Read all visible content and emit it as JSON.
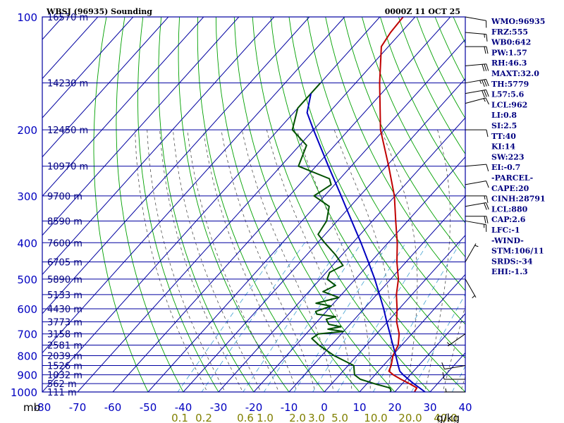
{
  "colors": {
    "frame": "#0000a0",
    "grid": "#0000a0",
    "dry_adiabat": "#00a000",
    "moist_adiabat": "#505050",
    "mixing_ratio": "#40a0d0",
    "temperature": "#c00000",
    "dewpoint": "#005000",
    "parcel": "#0000c0",
    "labels": "#000080",
    "left_labels": "#0000c0",
    "mixing_labels": "#808000"
  },
  "header": {
    "title": "WBSJ (96935) Sounding",
    "time": "0000Z 11 OCT 25"
  },
  "axes": {
    "pressure_unit": "mb",
    "mixing_unit": "g/kg"
  },
  "stats": [
    "WMO:96935",
    "FRZ:555",
    "WB0:642",
    "PW:1.57",
    "RH:46.3",
    "MAXT:32.0",
    "TH:5779",
    "L57:5.6",
    "LCL:962",
    "LI:0.8",
    "SI:2.5",
    "TT:40",
    "KI:14",
    "SW:223",
    "EI:-0.7",
    "-PARCEL-",
    "CAPE:20",
    "CINH:28791",
    "LCL:880",
    "CAP:2.6",
    "LFC:-1",
    "-WIND-",
    "STM:106/11",
    "SRDS:-34",
    "EHI:-1.3"
  ],
  "chart_data": {
    "type": "skew-t",
    "title": "WBSJ (96935) Sounding",
    "pressure_levels_mb": [
      100,
      200,
      300,
      400,
      500,
      600,
      700,
      800,
      900,
      1000
    ],
    "pressure_tick_labels": [
      "100",
      "200",
      "300",
      "400",
      "500",
      "600",
      "700",
      "800",
      "900",
      "1000"
    ],
    "temperature_ticks_c": [
      -80,
      -70,
      -60,
      -50,
      -40,
      -30,
      -20,
      -10,
      0,
      10,
      20,
      30,
      40
    ],
    "temperature_tick_labels": [
      "-80",
      "-70",
      "-60",
      "-50",
      "-40",
      "-30",
      "-20",
      "-10",
      "0",
      "10",
      "20",
      "30",
      "40"
    ],
    "xlim_c": [
      -80,
      40
    ],
    "heights": [
      {
        "p": 100,
        "label": "16570 m"
      },
      {
        "p": 150,
        "label": "14230 m"
      },
      {
        "p": 200,
        "label": "12450 m"
      },
      {
        "p": 250,
        "label": "10970 m"
      },
      {
        "p": 300,
        "label": "9700 m"
      },
      {
        "p": 350,
        "label": "8590 m"
      },
      {
        "p": 400,
        "label": "7600 m"
      },
      {
        "p": 450,
        "label": "6705 m"
      },
      {
        "p": 500,
        "label": "5890 m"
      },
      {
        "p": 550,
        "label": "5133 m"
      },
      {
        "p": 600,
        "label": "4430 m"
      },
      {
        "p": 650,
        "label": "3773 m"
      },
      {
        "p": 700,
        "label": "3158 m"
      },
      {
        "p": 750,
        "label": "2581 m"
      },
      {
        "p": 800,
        "label": "2039 m"
      },
      {
        "p": 850,
        "label": "1526 m"
      },
      {
        "p": 900,
        "label": "1032 m"
      },
      {
        "p": 950,
        "label": "562 m"
      },
      {
        "p": 1000,
        "label": "111 m"
      }
    ],
    "mixing_ratio_labels": [
      {
        "w": 0.1,
        "label": "0.1"
      },
      {
        "w": 0.2,
        "label": "0.2"
      },
      {
        "w": 0.6,
        "label": "0.6"
      },
      {
        "w": 1.0,
        "label": "1.0"
      },
      {
        "w": 2.0,
        "label": "2.0"
      },
      {
        "w": 3.0,
        "label": "3.0"
      },
      {
        "w": 5.0,
        "label": "5.0"
      },
      {
        "w": 10.0,
        "label": "10.0"
      },
      {
        "w": 20.0,
        "label": "20.0"
      },
      {
        "w": 40.0,
        "label": "40.0"
      }
    ],
    "series": [
      {
        "name": "temperature",
        "points": [
          [
            1000,
            25.6
          ],
          [
            990,
            25.4
          ],
          [
            975,
            25.2
          ],
          [
            950,
            22
          ],
          [
            925,
            18.5
          ],
          [
            900,
            15.2
          ],
          [
            880,
            13
          ],
          [
            850,
            12.2
          ],
          [
            800,
            10.2
          ],
          [
            750,
            9
          ],
          [
            700,
            6.4
          ],
          [
            650,
            2.6
          ],
          [
            600,
            -0.6
          ],
          [
            550,
            -4.4
          ],
          [
            500,
            -7.8
          ],
          [
            450,
            -12.6
          ],
          [
            400,
            -17.4
          ],
          [
            350,
            -23.4
          ],
          [
            300,
            -30.2
          ],
          [
            250,
            -39.4
          ],
          [
            200,
            -51
          ],
          [
            150,
            -63.2
          ],
          [
            120,
            -72
          ],
          [
            110,
            -73
          ],
          [
            100,
            -73.4
          ]
        ]
      },
      {
        "name": "dewpoint",
        "points": [
          [
            1000,
            18.7
          ],
          [
            990,
            18.5
          ],
          [
            975,
            17.5
          ],
          [
            950,
            12
          ],
          [
            925,
            7
          ],
          [
            900,
            4.2
          ],
          [
            850,
            1.6
          ],
          [
            800,
            -6.5
          ],
          [
            750,
            -13.5
          ],
          [
            720,
            -17.2
          ],
          [
            700,
            -16.5
          ],
          [
            690,
            -10
          ],
          [
            680,
            -15
          ],
          [
            670,
            -12
          ],
          [
            660,
            -16
          ],
          [
            640,
            -18
          ],
          [
            630,
            -16
          ],
          [
            620,
            -22
          ],
          [
            610,
            -23
          ],
          [
            590,
            -20
          ],
          [
            580,
            -25
          ],
          [
            560,
            -20
          ],
          [
            540,
            -26
          ],
          [
            520,
            -24
          ],
          [
            500,
            -28
          ],
          [
            480,
            -29
          ],
          [
            460,
            -27
          ],
          [
            430,
            -32
          ],
          [
            400,
            -38
          ],
          [
            380,
            -42
          ],
          [
            350,
            -43
          ],
          [
            320,
            -46
          ],
          [
            300,
            -53
          ],
          [
            280,
            -51
          ],
          [
            270,
            -53
          ],
          [
            250,
            -65
          ],
          [
            220,
            -68
          ],
          [
            200,
            -76
          ],
          [
            175,
            -80
          ],
          [
            150,
            -80
          ]
        ]
      },
      {
        "name": "parcel",
        "points": [
          [
            1000,
            28.6
          ],
          [
            950,
            23.2
          ],
          [
            900,
            18
          ],
          [
            880,
            16.1
          ],
          [
            850,
            14.2
          ],
          [
            800,
            11
          ],
          [
            750,
            7.5
          ],
          [
            700,
            3.8
          ],
          [
            650,
            -0.2
          ],
          [
            600,
            -4.4
          ],
          [
            550,
            -9.2
          ],
          [
            500,
            -14.5
          ],
          [
            450,
            -20.7
          ],
          [
            400,
            -27.7
          ],
          [
            350,
            -35.9
          ],
          [
            300,
            -45.3
          ],
          [
            250,
            -56.5
          ],
          [
            200,
            -70
          ],
          [
            180,
            -76.2
          ],
          [
            160,
            -80
          ]
        ]
      }
    ],
    "wind_barbs": [
      {
        "p": 100,
        "dir": 100,
        "spd": 10
      },
      {
        "p": 110,
        "dir": 95,
        "spd": 15
      },
      {
        "p": 120,
        "dir": 90,
        "spd": 20
      },
      {
        "p": 135,
        "dir": 85,
        "spd": 30
      },
      {
        "p": 150,
        "dir": 80,
        "spd": 35
      },
      {
        "p": 160,
        "dir": 80,
        "spd": 30
      },
      {
        "p": 170,
        "dir": 75,
        "spd": 15
      },
      {
        "p": 200,
        "dir": 90,
        "spd": 10
      },
      {
        "p": 250,
        "dir": 85,
        "spd": 10
      },
      {
        "p": 280,
        "dir": 80,
        "spd": 10
      },
      {
        "p": 300,
        "dir": 90,
        "spd": 15
      },
      {
        "p": 320,
        "dir": 80,
        "spd": 20
      },
      {
        "p": 340,
        "dir": 90,
        "spd": 20
      },
      {
        "p": 350,
        "dir": 100,
        "spd": 15
      },
      {
        "p": 450,
        "dir": 30,
        "spd": 5
      },
      {
        "p": 500,
        "dir": 150,
        "spd": 5
      },
      {
        "p": 700,
        "dir": 235,
        "spd": 5
      },
      {
        "p": 850,
        "dir": 260,
        "spd": 10
      },
      {
        "p": 925,
        "dir": 270,
        "spd": 10
      },
      {
        "p": 1000,
        "dir": 270,
        "spd": 5
      }
    ]
  }
}
